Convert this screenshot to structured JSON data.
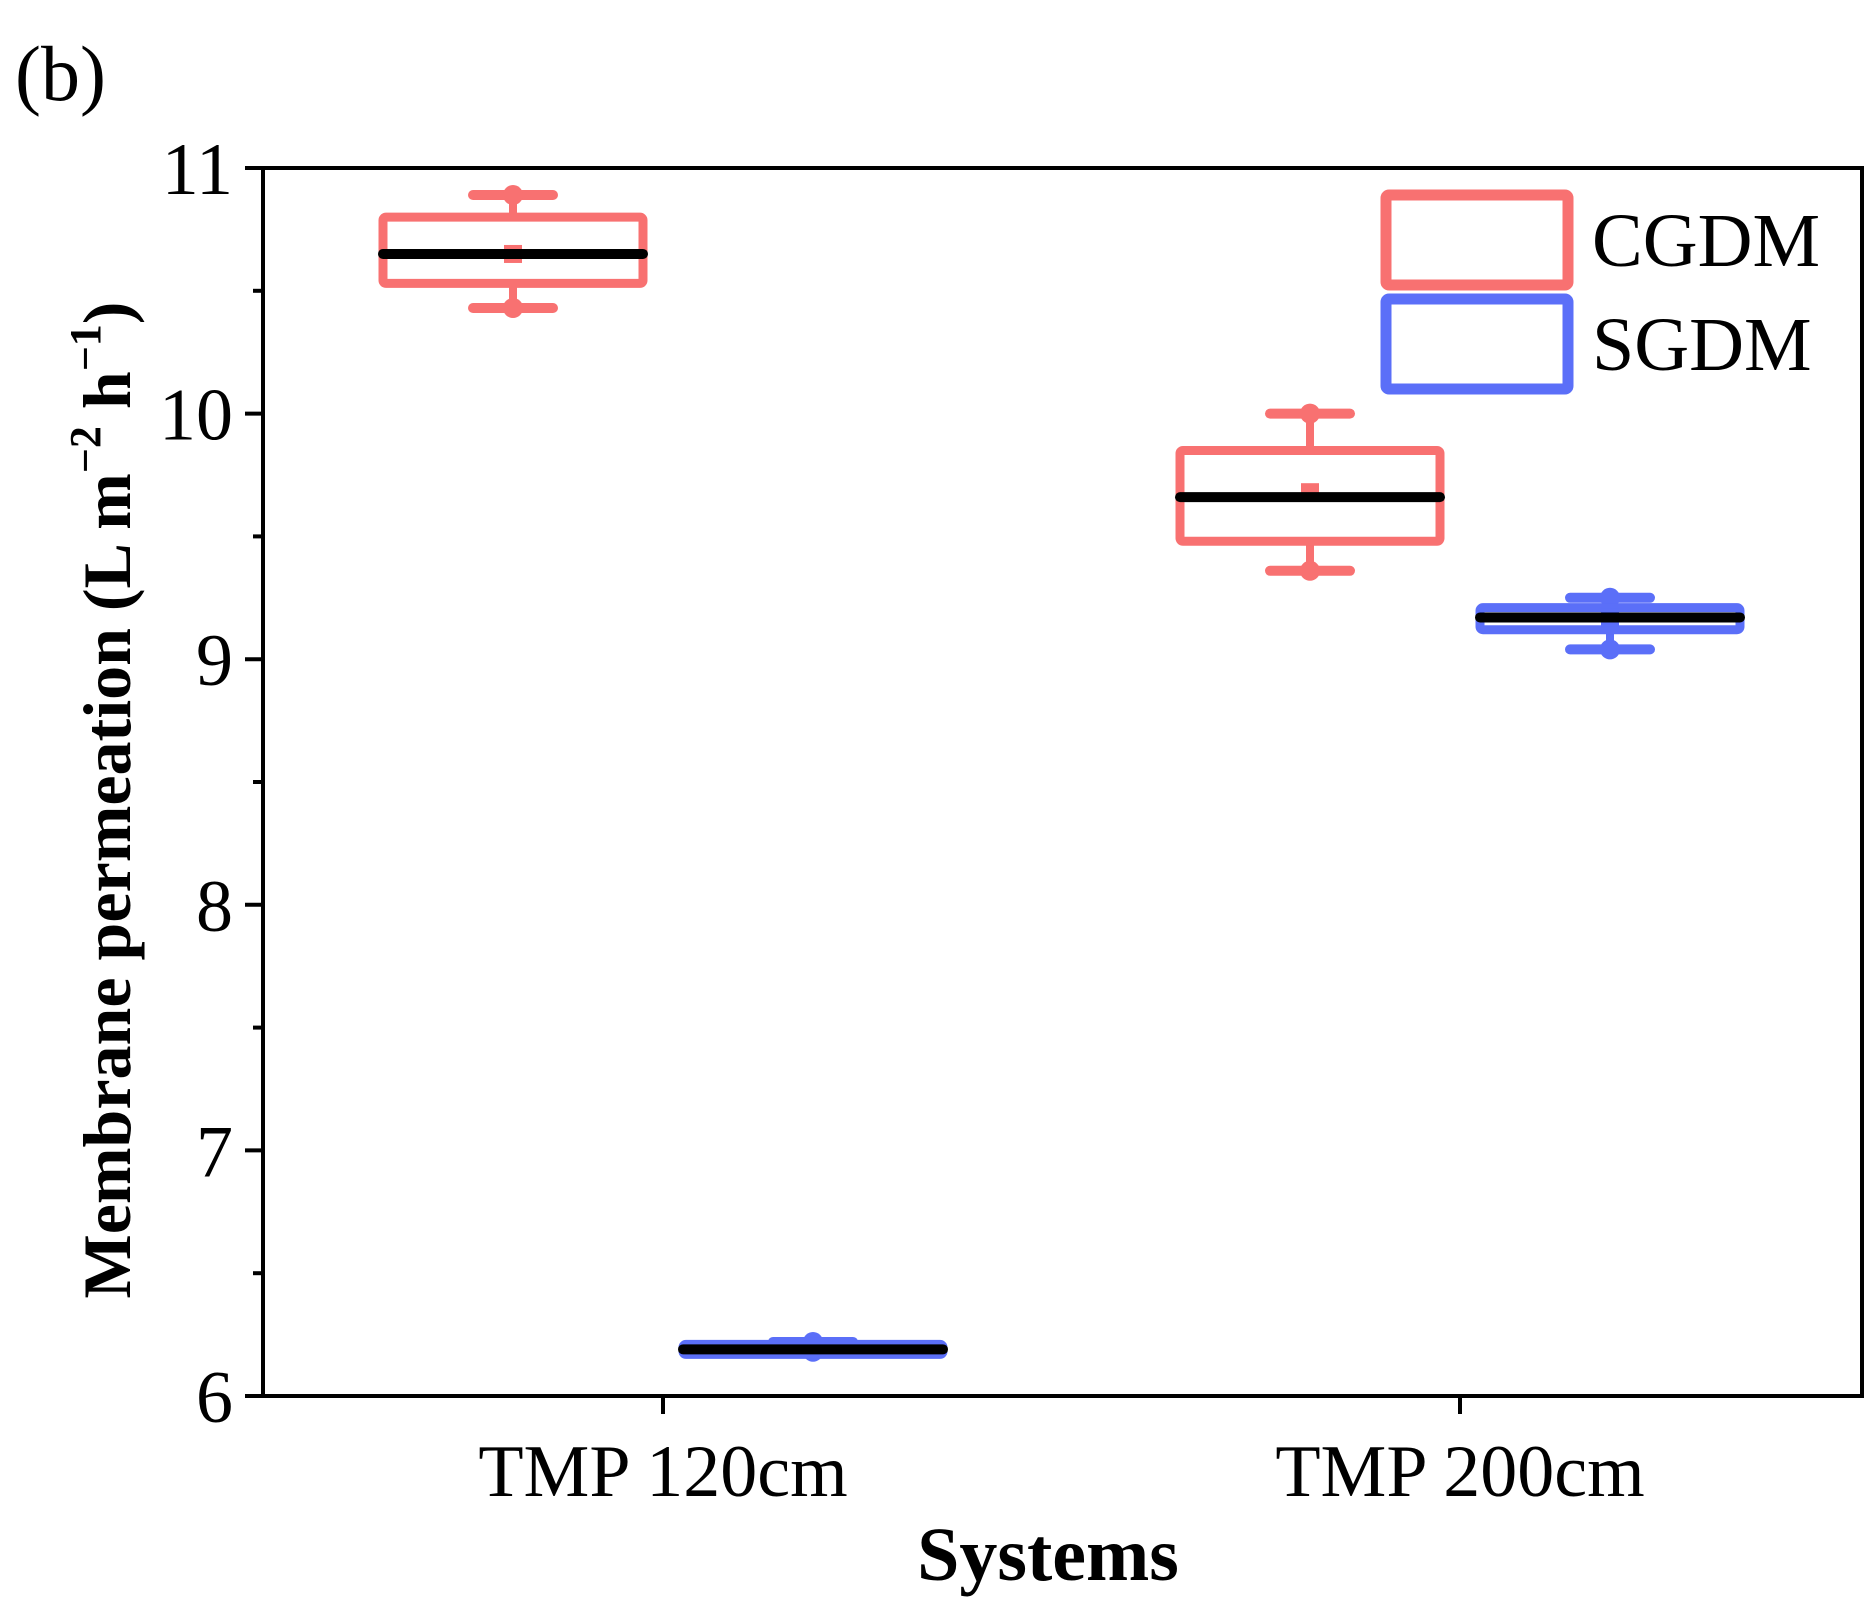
{
  "panel_label": "(b)",
  "chart_data": {
    "type": "box",
    "title": "",
    "xlabel": "Systems",
    "ylabel": "Membrane permeation (L m−2 h−1)",
    "ylabel_parts": {
      "main": "Membrane permeation (L m",
      "sup1": "−2",
      "mid": " h",
      "sup2": "−1",
      "end": ")"
    },
    "ylim": [
      6,
      11
    ],
    "yticks": [
      6,
      7,
      8,
      9,
      10,
      11
    ],
    "yticks_minor": [
      6.5,
      7.5,
      8.5,
      9.5,
      10.5
    ],
    "categories": [
      "TMP 120cm",
      "TMP 200cm"
    ],
    "legend": {
      "position": "top-right"
    },
    "series": [
      {
        "name": "CGDM",
        "color": "#F87171",
        "boxes": [
          {
            "category": "TMP 120cm",
            "min": 10.43,
            "q1": 10.53,
            "median": 10.65,
            "mean": 10.65,
            "q3": 10.8,
            "max": 10.89
          },
          {
            "category": "TMP 200cm",
            "min": 9.36,
            "q1": 9.48,
            "median": 9.66,
            "mean": 9.68,
            "q3": 9.85,
            "max": 10.0
          }
        ]
      },
      {
        "name": "SGDM",
        "color": "#5B6FF8",
        "boxes": [
          {
            "category": "TMP 120cm",
            "min": 6.18,
            "q1": 6.18,
            "median": 6.19,
            "mean": 6.2,
            "q3": 6.21,
            "max": 6.22
          },
          {
            "category": "TMP 200cm",
            "min": 9.04,
            "q1": 9.12,
            "median": 9.17,
            "mean": 9.17,
            "q3": 9.21,
            "max": 9.25
          }
        ]
      }
    ]
  }
}
